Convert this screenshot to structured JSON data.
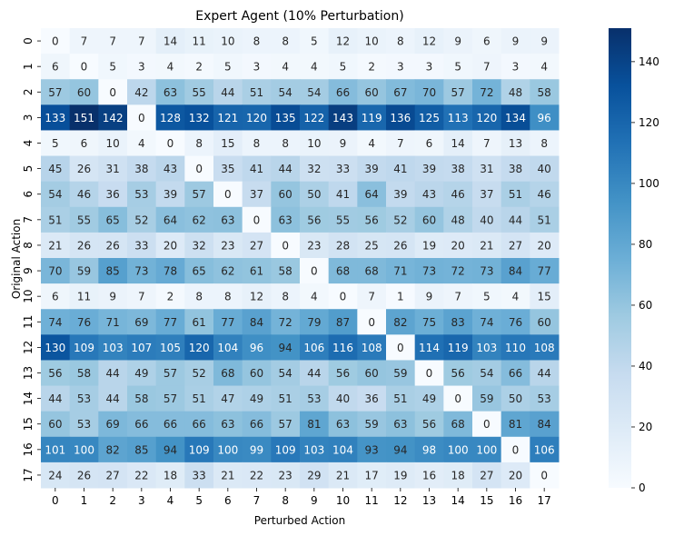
{
  "chart_data": {
    "type": "heatmap",
    "title": "Expert Agent (10% Perturbation)",
    "xlabel": "Perturbed Action",
    "ylabel": "Original Action",
    "x_categories": [
      "0",
      "1",
      "2",
      "3",
      "4",
      "5",
      "6",
      "7",
      "8",
      "9",
      "10",
      "11",
      "12",
      "13",
      "14",
      "15",
      "16",
      "17"
    ],
    "y_categories": [
      "0",
      "1",
      "2",
      "3",
      "4",
      "5",
      "6",
      "7",
      "8",
      "9",
      "10",
      "11",
      "12",
      "13",
      "14",
      "15",
      "16",
      "17"
    ],
    "values": [
      [
        0,
        7,
        7,
        7,
        14,
        11,
        10,
        8,
        8,
        5,
        12,
        10,
        8,
        12,
        9,
        6,
        9,
        9
      ],
      [
        6,
        0,
        5,
        3,
        4,
        2,
        5,
        3,
        4,
        4,
        5,
        2,
        3,
        3,
        5,
        7,
        3,
        4
      ],
      [
        57,
        60,
        0,
        42,
        63,
        55,
        44,
        51,
        54,
        54,
        66,
        60,
        67,
        70,
        57,
        72,
        48,
        58
      ],
      [
        133,
        151,
        142,
        0,
        128,
        132,
        121,
        120,
        135,
        122,
        143,
        119,
        136,
        125,
        113,
        120,
        134,
        96
      ],
      [
        5,
        6,
        10,
        4,
        0,
        8,
        15,
        8,
        8,
        10,
        9,
        4,
        7,
        6,
        14,
        7,
        13,
        8
      ],
      [
        45,
        26,
        31,
        38,
        43,
        0,
        35,
        41,
        44,
        32,
        33,
        39,
        41,
        39,
        38,
        31,
        38,
        40
      ],
      [
        54,
        46,
        36,
        53,
        39,
        57,
        0,
        37,
        60,
        50,
        41,
        64,
        39,
        43,
        46,
        37,
        51,
        46
      ],
      [
        51,
        55,
        65,
        52,
        64,
        62,
        63,
        0,
        63,
        56,
        55,
        56,
        52,
        60,
        48,
        40,
        44,
        51
      ],
      [
        21,
        26,
        26,
        33,
        20,
        32,
        23,
        27,
        0,
        23,
        28,
        25,
        26,
        19,
        20,
        21,
        27,
        20
      ],
      [
        70,
        59,
        85,
        73,
        78,
        65,
        62,
        61,
        58,
        0,
        68,
        68,
        71,
        73,
        72,
        73,
        84,
        77
      ],
      [
        6,
        11,
        9,
        7,
        2,
        8,
        8,
        12,
        8,
        4,
        0,
        7,
        1,
        9,
        7,
        5,
        4,
        15
      ],
      [
        74,
        76,
        71,
        69,
        77,
        61,
        77,
        84,
        72,
        79,
        87,
        0,
        82,
        75,
        83,
        74,
        76,
        60
      ],
      [
        130,
        109,
        103,
        107,
        105,
        120,
        104,
        96,
        94,
        106,
        116,
        108,
        0,
        114,
        119,
        103,
        110,
        108
      ],
      [
        56,
        58,
        44,
        49,
        57,
        52,
        68,
        60,
        54,
        44,
        56,
        60,
        59,
        0,
        56,
        54,
        66,
        44
      ],
      [
        44,
        53,
        44,
        58,
        57,
        51,
        47,
        49,
        51,
        53,
        40,
        36,
        51,
        49,
        0,
        59,
        50,
        53
      ],
      [
        60,
        53,
        69,
        66,
        66,
        66,
        63,
        66,
        57,
        81,
        63,
        59,
        63,
        56,
        68,
        0,
        81,
        84
      ],
      [
        101,
        100,
        82,
        85,
        94,
        109,
        100,
        99,
        109,
        103,
        104,
        93,
        94,
        98,
        100,
        100,
        0,
        106
      ],
      [
        24,
        26,
        27,
        22,
        18,
        33,
        21,
        22,
        23,
        29,
        21,
        17,
        19,
        16,
        18,
        27,
        20,
        0
      ]
    ],
    "colormap": "Blues",
    "vmin": 0,
    "vmax": 151,
    "colorbar_ticks": [
      0,
      20,
      40,
      60,
      80,
      100,
      120,
      140
    ],
    "annotate": true,
    "grid": false
  }
}
